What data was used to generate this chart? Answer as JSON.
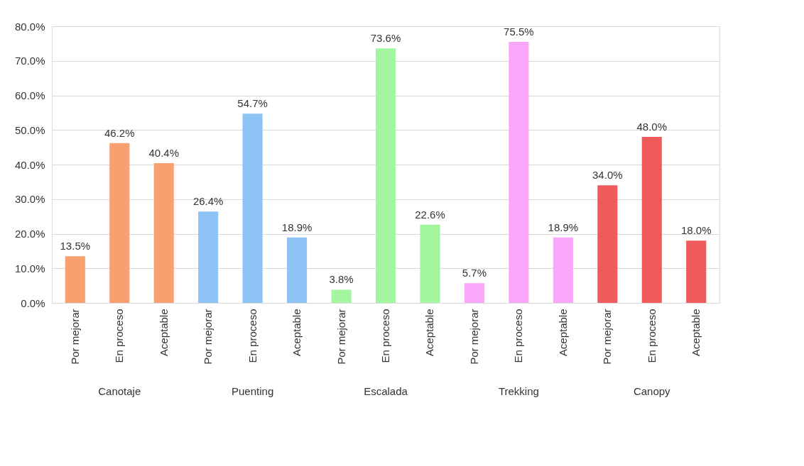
{
  "chart_data": {
    "type": "bar",
    "categories": [
      "Por mejorar",
      "En proceso",
      "Aceptable",
      "Por mejorar",
      "En proceso",
      "Aceptable",
      "Por mejorar",
      "En proceso",
      "Aceptable",
      "Por mejorar",
      "En proceso",
      "Aceptable",
      "Por mejorar",
      "En proceso",
      "Aceptable"
    ],
    "series": [
      {
        "color": "#f9a070",
        "values": [
          13.5,
          46.2,
          40.4,
          null,
          null,
          null,
          null,
          null,
          null,
          null,
          null,
          null,
          null,
          null,
          null
        ],
        "value_labels": [
          "13.5%",
          "46.2%",
          "40.4%",
          null,
          null,
          null,
          null,
          null,
          null,
          null,
          null,
          null,
          null,
          null,
          null
        ]
      },
      {
        "color": "#8ec3f5",
        "values": [
          null,
          null,
          null,
          26.4,
          54.7,
          18.9,
          null,
          null,
          null,
          null,
          null,
          null,
          null,
          null,
          null
        ],
        "value_labels": [
          null,
          null,
          null,
          "26.4%",
          "54.7%",
          "18.9%",
          null,
          null,
          null,
          null,
          null,
          null,
          null,
          null,
          null
        ]
      },
      {
        "color": "#a4f5a0",
        "values": [
          null,
          null,
          null,
          null,
          null,
          null,
          3.8,
          73.6,
          22.6,
          null,
          null,
          null,
          null,
          null,
          null
        ],
        "value_labels": [
          null,
          null,
          null,
          null,
          null,
          null,
          "3.8%",
          "73.6%",
          "22.6%",
          null,
          null,
          null,
          null,
          null,
          null
        ]
      },
      {
        "color": "#f9a8f9",
        "values": [
          null,
          null,
          null,
          null,
          null,
          null,
          null,
          null,
          null,
          5.7,
          75.5,
          18.9,
          null,
          null,
          null
        ],
        "value_labels": [
          null,
          null,
          null,
          null,
          null,
          null,
          null,
          null,
          null,
          "5.7%",
          "75.5%",
          "18.9%",
          null,
          null,
          null
        ]
      },
      {
        "color": "#f05a5a",
        "values": [
          null,
          null,
          null,
          null,
          null,
          null,
          null,
          null,
          null,
          null,
          null,
          null,
          34.0,
          48.0,
          18.0
        ],
        "value_labels": [
          null,
          null,
          null,
          null,
          null,
          null,
          null,
          null,
          null,
          null,
          null,
          null,
          "34.0%",
          "48.0%",
          "18.0%"
        ]
      }
    ],
    "annotations": [
      "Canotaje",
      "Puenting",
      "Escalada",
      "Trekking",
      "Canopy"
    ],
    "ylim": [
      0,
      80
    ],
    "yticks": [
      {
        "value": 0,
        "label": "0.0%"
      },
      {
        "value": 10,
        "label": "10.0%"
      },
      {
        "value": 20,
        "label": "20.0%"
      },
      {
        "value": 30,
        "label": "30.0%"
      },
      {
        "value": 40,
        "label": "40.0%"
      },
      {
        "value": 50,
        "label": "50.0%"
      },
      {
        "value": 60,
        "label": "60.0%"
      },
      {
        "value": 70,
        "label": "70.0%"
      },
      {
        "value": 80,
        "label": "80.0%"
      }
    ],
    "grid": "y",
    "legend": false
  }
}
